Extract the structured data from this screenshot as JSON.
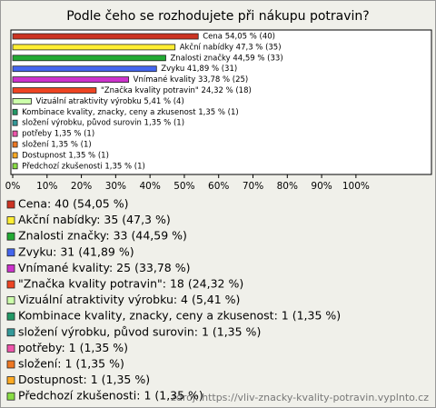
{
  "chart_data": {
    "type": "bar",
    "orientation": "horizontal",
    "title": "Podle čeho se rozhodujete při nákupu potravin?",
    "categories": [
      "Cena",
      "Akční nabídky",
      "Znalosti značky",
      "Zvyku",
      "Vnímané kvality",
      "\"Značka kvality potravin\"",
      "Vizuální atraktivity výrobku",
      "Kombinace kvality, znacky, ceny a zkusenost",
      "složení výrobku, původ surovin",
      "potřeby",
      "složení",
      "Dostupnost",
      "Předchozí zkušenosti"
    ],
    "values": [
      54.05,
      47.3,
      44.59,
      41.89,
      33.78,
      24.32,
      5.41,
      1.35,
      1.35,
      1.35,
      1.35,
      1.35,
      1.35
    ],
    "value_labels": [
      "Cena 54,05 % (40)",
      "Akční nabídky 47,3 % (35)",
      "Znalosti značky 44,59 % (33)",
      "Zvyku 41,89 % (31)",
      "Vnímané kvality 33,78 % (25)",
      "\"Značka kvality potravin\" 24,32 % (18)",
      "Vizuální atraktivity výrobku 5,41 % (4)",
      "Kombinace kvality, znacky, ceny a zkusenost 1,35 % (1)",
      "složení výrobku, původ surovin 1,35 % (1)",
      "potřeby 1,35 % (1)",
      "složení 1,35 % (1)",
      "Dostupnost 1,35 % (1)",
      "Předchozí zkušenosti 1,35 % (1)"
    ],
    "legend_labels": [
      "Cena: 40 (54,05 %)",
      "Akční nabídky: 35 (47,3 %)",
      "Znalosti značky: 33 (44,59 %)",
      "Zvyku: 31 (41,89 %)",
      "Vnímané kvality: 25 (33,78 %)",
      "\"Značka kvality potravin\": 18 (24,32 %)",
      "Vizuální atraktivity výrobku: 4 (5,41 %)",
      "Kombinace kvality, znacky, ceny a zkusenost: 1 (1,35 %)",
      "složení výrobku, původ surovin: 1 (1,35 %)",
      "potřeby: 1 (1,35 %)",
      "složení: 1 (1,35 %)",
      "Dostupnost: 1 (1,35 %)",
      "Předchozí zkušenosti: 1 (1,35 %)"
    ],
    "colors": [
      "#cc3322",
      "#ffee33",
      "#22aa33",
      "#4466ee",
      "#cc33cc",
      "#ee4422",
      "#ccffaa",
      "#229966",
      "#339999",
      "#ee55aa",
      "#ee7722",
      "#ffaa22",
      "#88dd44"
    ],
    "xlim": [
      0,
      122
    ],
    "xticks": [
      {
        "value": 0,
        "label": "0%"
      },
      {
        "value": 10,
        "label": "10%"
      },
      {
        "value": 20,
        "label": "20%"
      },
      {
        "value": 30,
        "label": "30%"
      },
      {
        "value": 40,
        "label": "40%"
      },
      {
        "value": 50,
        "label": "50%"
      },
      {
        "value": 60,
        "label": "60%"
      },
      {
        "value": 70,
        "label": "70%"
      },
      {
        "value": 80,
        "label": "80%"
      },
      {
        "value": 90,
        "label": "90%"
      },
      {
        "value": 100,
        "label": "100%"
      }
    ],
    "grid": false,
    "source": "zdroj: https://vliv-znacky-kvality-potravin.vyplnto.cz"
  }
}
